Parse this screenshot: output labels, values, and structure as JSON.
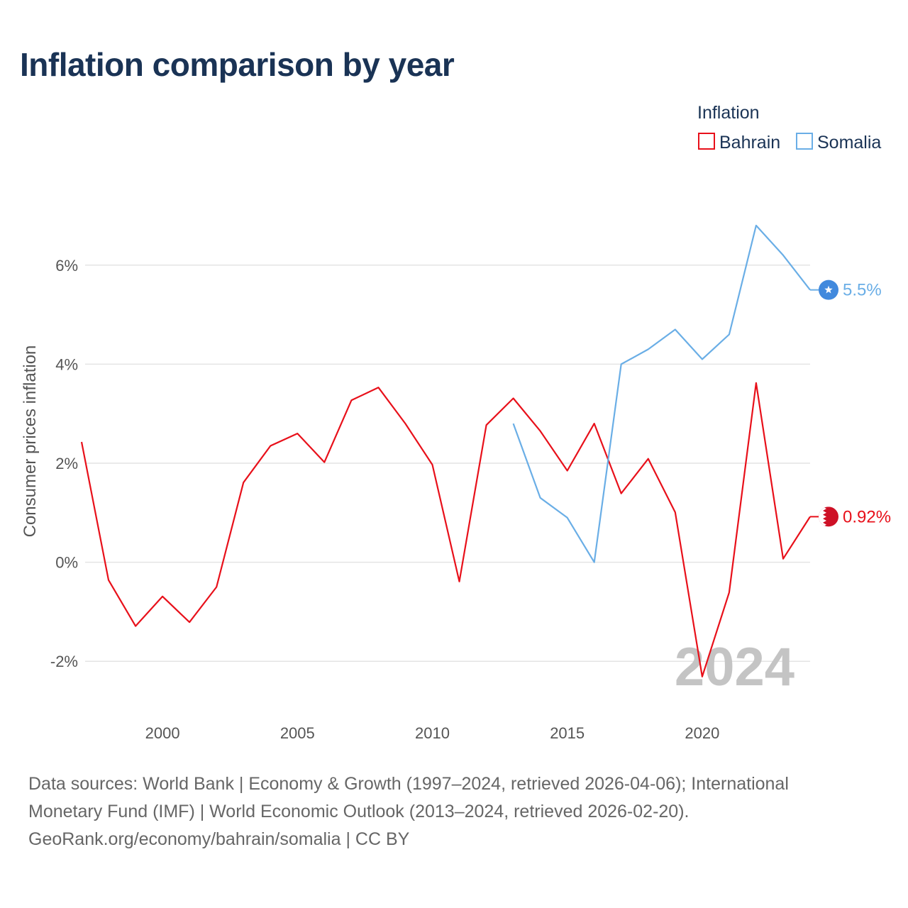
{
  "title": "Inflation comparison by year",
  "chart_data": {
    "type": "line",
    "ylabel": "Consumer prices inflation",
    "xlabel": "",
    "xlim": [
      1997,
      2024
    ],
    "ylim": [
      -3.0,
      7.2
    ],
    "x_ticks": [
      2000,
      2005,
      2010,
      2015,
      2020
    ],
    "y_ticks": [
      {
        "value": 6,
        "label": "6%"
      },
      {
        "value": 4,
        "label": "4%"
      },
      {
        "value": 2,
        "label": "2%"
      },
      {
        "value": 0,
        "label": "0%"
      },
      {
        "value": -2,
        "label": "-2%"
      }
    ],
    "legend": {
      "title": "Inflation",
      "position": "top-right"
    },
    "watermark_year": "2024",
    "series": [
      {
        "name": "Bahrain",
        "color": "#e8101a",
        "end_label": "0.92%",
        "flag_icon": "bahrain-flag-icon",
        "points": [
          [
            1997,
            2.43
          ],
          [
            1998,
            -0.36
          ],
          [
            1999,
            -1.29
          ],
          [
            2000,
            -0.69
          ],
          [
            2001,
            -1.21
          ],
          [
            2002,
            -0.5
          ],
          [
            2003,
            1.61
          ],
          [
            2004,
            2.35
          ],
          [
            2005,
            2.6
          ],
          [
            2006,
            2.02
          ],
          [
            2007,
            3.27
          ],
          [
            2008,
            3.53
          ],
          [
            2009,
            2.8
          ],
          [
            2010,
            1.97
          ],
          [
            2011,
            -0.39
          ],
          [
            2012,
            2.77
          ],
          [
            2013,
            3.31
          ],
          [
            2014,
            2.65
          ],
          [
            2015,
            1.85
          ],
          [
            2016,
            2.8
          ],
          [
            2017,
            1.39
          ],
          [
            2018,
            2.09
          ],
          [
            2019,
            1.01
          ],
          [
            2020,
            -2.31
          ],
          [
            2021,
            -0.61
          ],
          [
            2022,
            3.62
          ],
          [
            2023,
            0.07
          ],
          [
            2024,
            0.92
          ]
        ]
      },
      {
        "name": "Somalia",
        "color": "#6aaee6",
        "end_label": "5.5%",
        "flag_icon": "somalia-flag-icon",
        "points": [
          [
            2013,
            2.8
          ],
          [
            2014,
            1.3
          ],
          [
            2015,
            0.9
          ],
          [
            2016,
            0.0
          ],
          [
            2017,
            4.0
          ],
          [
            2018,
            4.3
          ],
          [
            2019,
            4.7
          ],
          [
            2020,
            4.1
          ],
          [
            2021,
            4.6
          ],
          [
            2022,
            6.8
          ],
          [
            2023,
            6.2
          ],
          [
            2024,
            5.5
          ]
        ]
      }
    ]
  },
  "sources": {
    "line1": "Data sources: World Bank | Economy & Growth (1997–2024, retrieved 2026-04-06); International",
    "line2": "Monetary Fund (IMF) | World Economic Outlook (2013–2024, retrieved 2026-02-20).",
    "line3": "GeoRank.org/economy/bahrain/somalia | CC BY"
  }
}
